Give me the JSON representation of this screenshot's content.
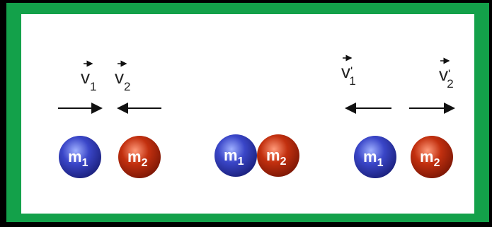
{
  "scenes": [
    {
      "velocities": [
        {
          "symbol": "v",
          "subscript": "1"
        },
        {
          "symbol": "v",
          "subscript": "2"
        }
      ],
      "masses": [
        {
          "symbol": "m",
          "subscript": "1"
        },
        {
          "symbol": "m",
          "subscript": "2"
        }
      ]
    },
    {
      "masses": [
        {
          "symbol": "m",
          "subscript": "1"
        },
        {
          "symbol": "m",
          "subscript": "2"
        }
      ]
    },
    {
      "velocities": [
        {
          "symbol": "v",
          "prime": "'",
          "subscript": "1"
        },
        {
          "symbol": "v",
          "prime": "'",
          "subscript": "2"
        }
      ],
      "masses": [
        {
          "symbol": "m",
          "subscript": "1"
        },
        {
          "symbol": "m",
          "subscript": "2"
        }
      ]
    }
  ]
}
